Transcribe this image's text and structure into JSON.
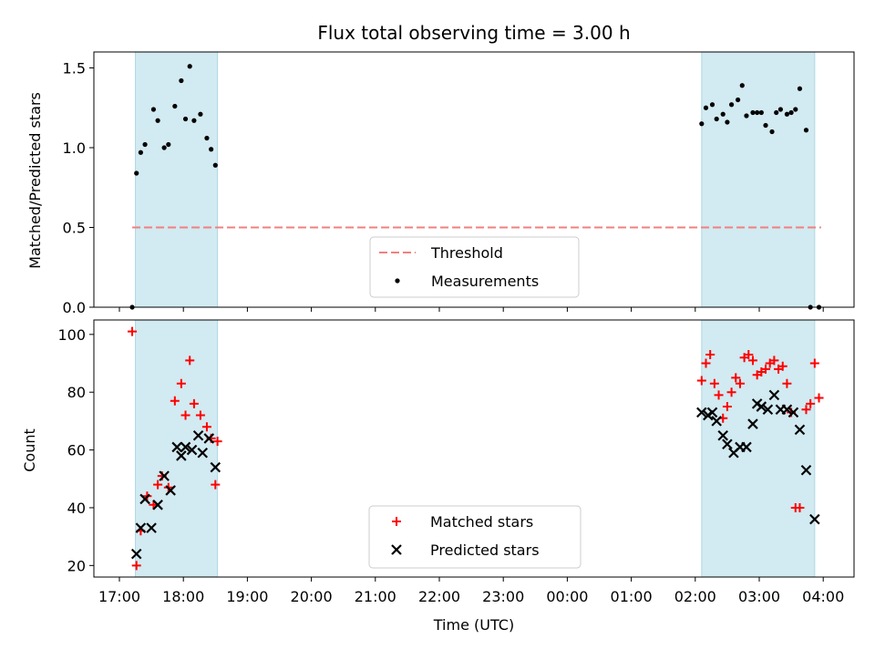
{
  "chart_data": {
    "title": "Flux total observing time = 3.00 h",
    "xlabel": "Time (UTC)",
    "x_ticks": [
      "17:00",
      "18:00",
      "19:00",
      "20:00",
      "21:00",
      "22:00",
      "23:00",
      "00:00",
      "01:00",
      "02:00",
      "03:00",
      "04:00"
    ],
    "shaded_windows": [
      [
        "17:15",
        "18:32"
      ],
      [
        "02:06",
        "03:52"
      ]
    ],
    "colors": {
      "band": "#add8e6",
      "matched": "#ff0000",
      "predicted": "#000000",
      "threshold": "#f08080",
      "measurement": "#000000"
    },
    "panels": [
      {
        "type": "scatter",
        "ylabel": "Matched/Predicted stars",
        "ylim": [
          0,
          1.6
        ],
        "yticks": [
          "0.0",
          "0.5",
          "1.0",
          "1.5"
        ],
        "legend_position": "lower-center",
        "threshold": {
          "name": "Threshold",
          "value": 0.5,
          "x_range": [
            "17:12",
            "03:58"
          ]
        },
        "series": [
          {
            "name": "Measurements",
            "marker": "dot",
            "x": [
              "17:12",
              "17:16",
              "17:20",
              "17:24",
              "17:32",
              "17:36",
              "17:42",
              "17:46",
              "17:52",
              "17:58",
              "18:02",
              "18:06",
              "18:10",
              "18:16",
              "18:22",
              "18:26",
              "18:30",
              "02:06",
              "02:10",
              "02:16",
              "02:20",
              "02:26",
              "02:30",
              "02:34",
              "02:40",
              "02:44",
              "02:48",
              "02:54",
              "02:58",
              "03:02",
              "03:06",
              "03:12",
              "03:16",
              "03:20",
              "03:26",
              "03:30",
              "03:34",
              "03:38",
              "03:44",
              "03:48",
              "03:56"
            ],
            "values": [
              0.0,
              0.84,
              0.97,
              1.02,
              1.24,
              1.17,
              1.0,
              1.02,
              1.26,
              1.42,
              1.18,
              1.51,
              1.17,
              1.21,
              1.06,
              0.99,
              0.89,
              1.15,
              1.25,
              1.27,
              1.18,
              1.21,
              1.16,
              1.27,
              1.3,
              1.39,
              1.2,
              1.22,
              1.22,
              1.22,
              1.14,
              1.1,
              1.22,
              1.24,
              1.21,
              1.22,
              1.24,
              1.37,
              1.11,
              0.0,
              0.0
            ]
          }
        ]
      },
      {
        "type": "scatter",
        "ylabel": "Count",
        "ylim": [
          16,
          105
        ],
        "yticks": [
          "20",
          "40",
          "60",
          "80",
          "100"
        ],
        "legend_position": "lower-center",
        "series": [
          {
            "name": "Matched stars",
            "marker": "plus",
            "x": [
              "17:12",
              "17:16",
              "17:20",
              "17:26",
              "17:32",
              "17:36",
              "17:40",
              "17:46",
              "17:52",
              "17:58",
              "18:02",
              "18:06",
              "18:10",
              "18:16",
              "18:22",
              "18:26",
              "18:30",
              "18:32",
              "02:06",
              "02:10",
              "02:14",
              "02:18",
              "02:22",
              "02:26",
              "02:30",
              "02:34",
              "02:38",
              "02:42",
              "02:46",
              "02:50",
              "02:54",
              "02:58",
              "03:02",
              "03:06",
              "03:10",
              "03:14",
              "03:18",
              "03:22",
              "03:26",
              "03:30",
              "03:34",
              "03:38",
              "03:44",
              "03:48",
              "03:52",
              "03:56"
            ],
            "values": [
              101,
              20,
              32,
              44,
              41,
              48,
              51,
              47,
              77,
              83,
              72,
              91,
              76,
              72,
              68,
              64,
              48,
              63,
              84,
              90,
              93,
              83,
              79,
              71,
              75,
              80,
              85,
              83,
              92,
              93,
              91,
              86,
              87,
              88,
              90,
              91,
              88,
              89,
              83,
              73,
              40,
              40,
              74,
              76,
              90,
              78
            ]
          },
          {
            "name": "Predicted stars",
            "marker": "x",
            "x": [
              "17:16",
              "17:20",
              "17:24",
              "17:30",
              "17:36",
              "17:42",
              "17:48",
              "17:54",
              "17:58",
              "18:02",
              "18:08",
              "18:14",
              "18:18",
              "18:24",
              "18:30",
              "02:06",
              "02:12",
              "02:16",
              "02:20",
              "02:26",
              "02:30",
              "02:36",
              "02:42",
              "02:48",
              "02:54",
              "02:58",
              "03:02",
              "03:08",
              "03:14",
              "03:20",
              "03:26",
              "03:32",
              "03:38",
              "03:44",
              "03:52"
            ],
            "values": [
              24,
              33,
              43,
              33,
              41,
              51,
              46,
              61,
              58,
              61,
              60,
              65,
              59,
              64,
              54,
              73,
              72,
              73,
              70,
              65,
              62,
              59,
              61,
              61,
              69,
              76,
              75,
              74,
              79,
              74,
              74,
              73,
              67,
              53,
              36
            ]
          }
        ]
      }
    ]
  }
}
